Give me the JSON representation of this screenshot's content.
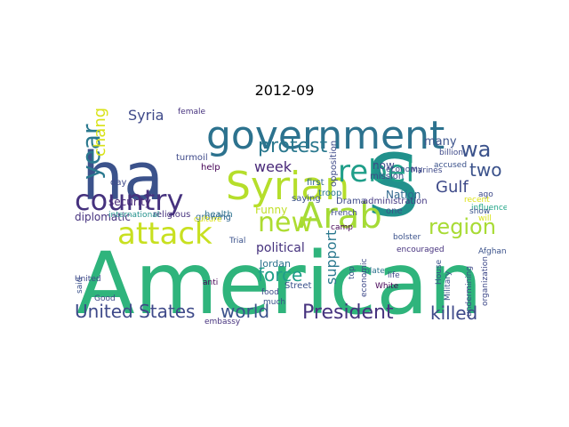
{
  "figure": {
    "title": "2012-09"
  },
  "chart_data": {
    "type": "wordcloud",
    "title": "2012-09",
    "words": [
      {
        "text": "American",
        "color": "#2fb47c"
      },
      {
        "text": "ha",
        "color": "#3b528b"
      },
      {
        "text": "government",
        "color": "#2c728e"
      },
      {
        "text": "S",
        "color": "#21918c"
      },
      {
        "text": "Syrian",
        "color": "#b5de2b"
      },
      {
        "text": "country",
        "color": "#46327e"
      },
      {
        "text": "Arab",
        "color": "#a5db36"
      },
      {
        "text": "attack",
        "color": "#c8e020"
      },
      {
        "text": "year",
        "color": "#2a788e"
      },
      {
        "text": "rebel",
        "color": "#1f9e89"
      },
      {
        "text": "President",
        "color": "#46327e"
      },
      {
        "text": "United States",
        "color": "#3e4989"
      },
      {
        "text": "new",
        "color": "#addc30"
      },
      {
        "text": "region",
        "color": "#a8db34"
      },
      {
        "text": "protest",
        "color": "#2a788e"
      },
      {
        "text": "wa",
        "color": "#3b528b"
      },
      {
        "text": "world",
        "color": "#3b528b"
      },
      {
        "text": "killed",
        "color": "#3e4989"
      },
      {
        "text": "Syria",
        "color": "#3e4989"
      },
      {
        "text": "force",
        "color": "#1f9e89"
      },
      {
        "text": "change",
        "color": "#d8e219"
      },
      {
        "text": "week",
        "color": "#482878"
      },
      {
        "text": "two",
        "color": "#3b528b"
      },
      {
        "text": "Gulf",
        "color": "#3e4a89"
      },
      {
        "text": "support",
        "color": "#2a788e"
      },
      {
        "text": "diplomatic",
        "color": "#46327e"
      },
      {
        "text": "security",
        "color": "#482878"
      },
      {
        "text": "political",
        "color": "#46327e"
      },
      {
        "text": "Nation",
        "color": "#31688e"
      },
      {
        "text": "Funny",
        "color": "#c0df25"
      },
      {
        "text": "many",
        "color": "#3b528b"
      },
      {
        "text": "now",
        "color": "#3e4989"
      },
      {
        "text": "religious",
        "color": "#46327e"
      },
      {
        "text": "Jordan",
        "color": "#2c728e"
      },
      {
        "text": "Drama",
        "color": "#3e4989"
      },
      {
        "text": "administration",
        "color": "#443983"
      },
      {
        "text": "saying",
        "color": "#3b528b"
      },
      {
        "text": "first",
        "color": "#31688e"
      },
      {
        "text": "troop",
        "color": "#2a788e"
      },
      {
        "text": "opposition",
        "color": "#3e4989"
      },
      {
        "text": "influence",
        "color": "#20a486"
      },
      {
        "text": "Afghan",
        "color": "#3b528b"
      },
      {
        "text": "mission",
        "color": "#3e4989"
      },
      {
        "text": "accused",
        "color": "#3b528b"
      },
      {
        "text": "billion",
        "color": "#3e4989"
      },
      {
        "text": "turmoil",
        "color": "#3e4989"
      },
      {
        "text": "day",
        "color": "#3e4989"
      },
      {
        "text": "help",
        "color": "#440154"
      },
      {
        "text": "health",
        "color": "#2c728e"
      },
      {
        "text": "growing",
        "color": "#31688e"
      },
      {
        "text": "Trial",
        "color": "#3b528b"
      },
      {
        "text": "economy",
        "color": "#3e4989"
      },
      {
        "text": "encouraged",
        "color": "#46327e"
      },
      {
        "text": "bolster",
        "color": "#3b528b"
      },
      {
        "text": "Good",
        "color": "#3e4989"
      },
      {
        "text": "Military",
        "color": "#3b528b"
      },
      {
        "text": "organization",
        "color": "#3e4989"
      },
      {
        "text": "White",
        "color": "#440154"
      },
      {
        "text": "House",
        "color": "#3b528b"
      },
      {
        "text": "Street",
        "color": "#3b528b"
      },
      {
        "text": "much",
        "color": "#3b528b"
      },
      {
        "text": "food",
        "color": "#3e4989"
      },
      {
        "text": "anti",
        "color": "#440154"
      },
      {
        "text": "plate",
        "color": "#2c728e"
      },
      {
        "text": "life",
        "color": "#3e4989"
      },
      {
        "text": "French",
        "color": "#3e4989"
      },
      {
        "text": "one",
        "color": "#3b528b"
      },
      {
        "text": "culture",
        "color": "#dde318"
      },
      {
        "text": "camp",
        "color": "#440154"
      },
      {
        "text": "Marines",
        "color": "#3e4989"
      },
      {
        "text": "international",
        "color": "#21918c"
      },
      {
        "text": "said",
        "color": "#3b528b"
      },
      {
        "text": "female",
        "color": "#46327e"
      },
      {
        "text": "ago",
        "color": "#3e4989"
      },
      {
        "text": "will",
        "color": "#d8e219"
      },
      {
        "text": "show",
        "color": "#3b528b"
      },
      {
        "text": "recent",
        "color": "#dde318"
      },
      {
        "text": "undermining",
        "color": "#3e4989"
      },
      {
        "text": "economic",
        "color": "#3e4989"
      },
      {
        "text": "top",
        "color": "#3b528b"
      },
      {
        "text": "embassy",
        "color": "#46327e"
      },
      {
        "text": "United",
        "color": "#3e4989"
      }
    ]
  }
}
